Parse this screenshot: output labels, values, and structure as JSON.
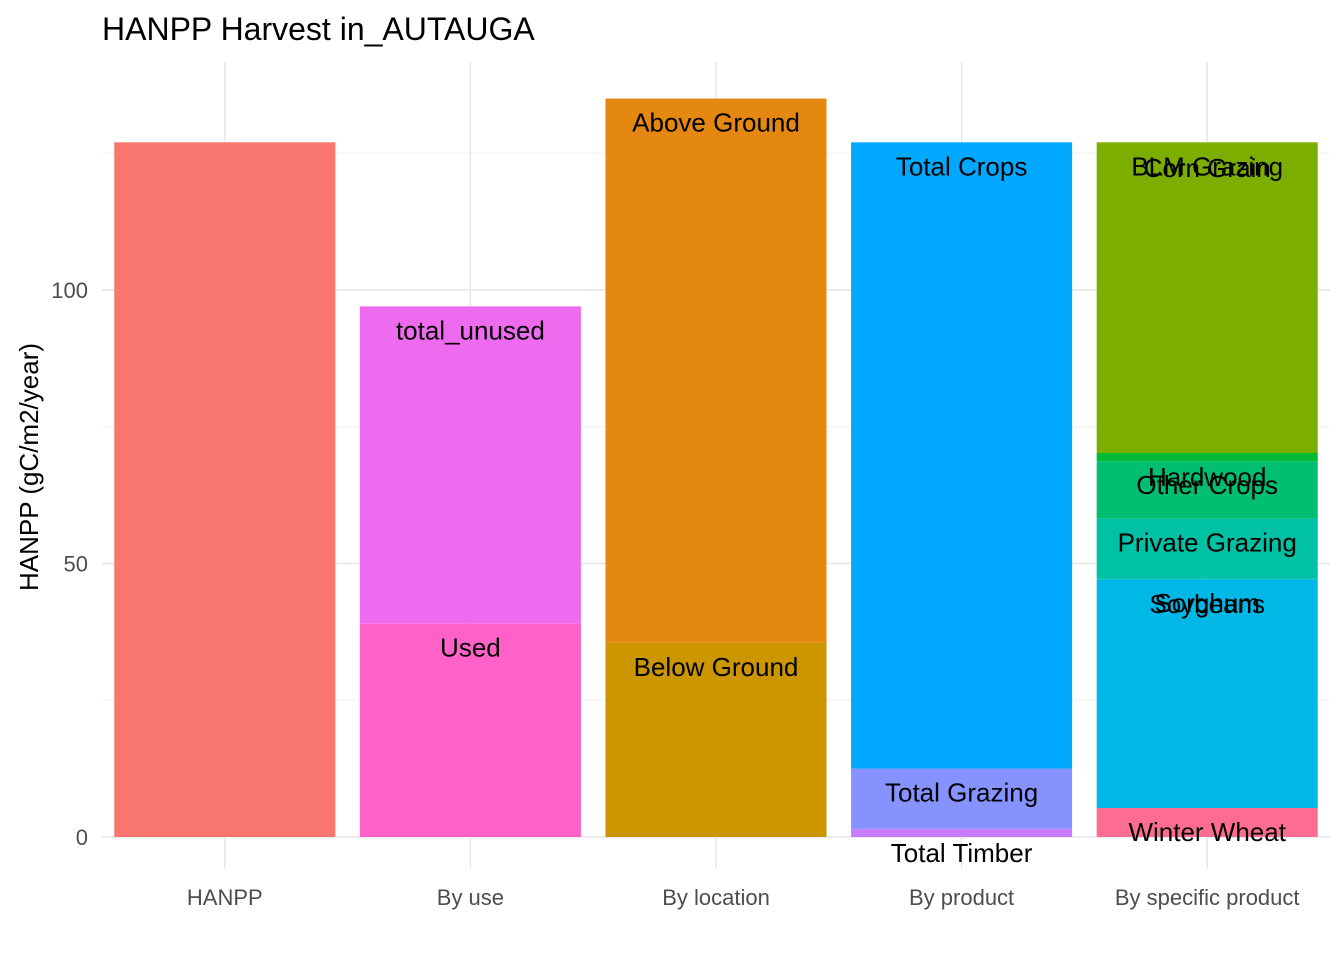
{
  "chart_data": {
    "type": "bar",
    "stacked": true,
    "title": "HANPP Harvest in_AUTAUGA",
    "xlabel": "",
    "ylabel": "HANPP (gC/m2/year)",
    "ylim": [
      0,
      136.5
    ],
    "yticks": [
      0,
      50,
      100
    ],
    "grid": true,
    "legend": "none",
    "categories": [
      "HANPP",
      "By use",
      "By location",
      "By product",
      "By specific product"
    ],
    "bars": [
      {
        "category": "HANPP",
        "segments": [
          {
            "label": "",
            "value": 127,
            "color": "#F8766D"
          }
        ]
      },
      {
        "category": "By use",
        "segments": [
          {
            "label": "Used",
            "value": 39,
            "color": "#FF61C9"
          },
          {
            "label": "total_unused",
            "value": 58,
            "color": "#EE6AEF"
          }
        ]
      },
      {
        "category": "By location",
        "segments": [
          {
            "label": "Below Ground",
            "value": 35.5,
            "color": "#CC9600"
          },
          {
            "label": "Above Ground",
            "value": 99.5,
            "color": "#E58812"
          }
        ]
      },
      {
        "category": "By product",
        "segments": [
          {
            "label": "Total Timber",
            "value": 1.5,
            "color": "#C77CFF"
          },
          {
            "label": "Total Grazing",
            "value": 11,
            "color": "#8693FF"
          },
          {
            "label": "Total Crops",
            "value": 114.5,
            "color": "#00A9FF"
          }
        ]
      },
      {
        "category": "By specific product",
        "segments": [
          {
            "label": "Winter Wheat",
            "value": 5.3,
            "color": "#FF6C91"
          },
          {
            "label": "Soybeans",
            "value": 41.7,
            "color": "#00B8E5"
          },
          {
            "label": "Sorghum",
            "value": 0.2,
            "color": "#00BCD8"
          },
          {
            "label": "Private Grazing",
            "value": 11,
            "color": "#00C1A3"
          },
          {
            "label": "Other Crops",
            "value": 10.5,
            "color": "#00BE70"
          },
          {
            "label": "Hardwood",
            "value": 1.5,
            "color": "#00BA38"
          },
          {
            "label": "Corn Grain",
            "value": 56.5,
            "color": "#7CAE00"
          },
          {
            "label": "BLM Grazing",
            "value": 0.3,
            "color": "#7CAE00"
          }
        ]
      }
    ]
  }
}
